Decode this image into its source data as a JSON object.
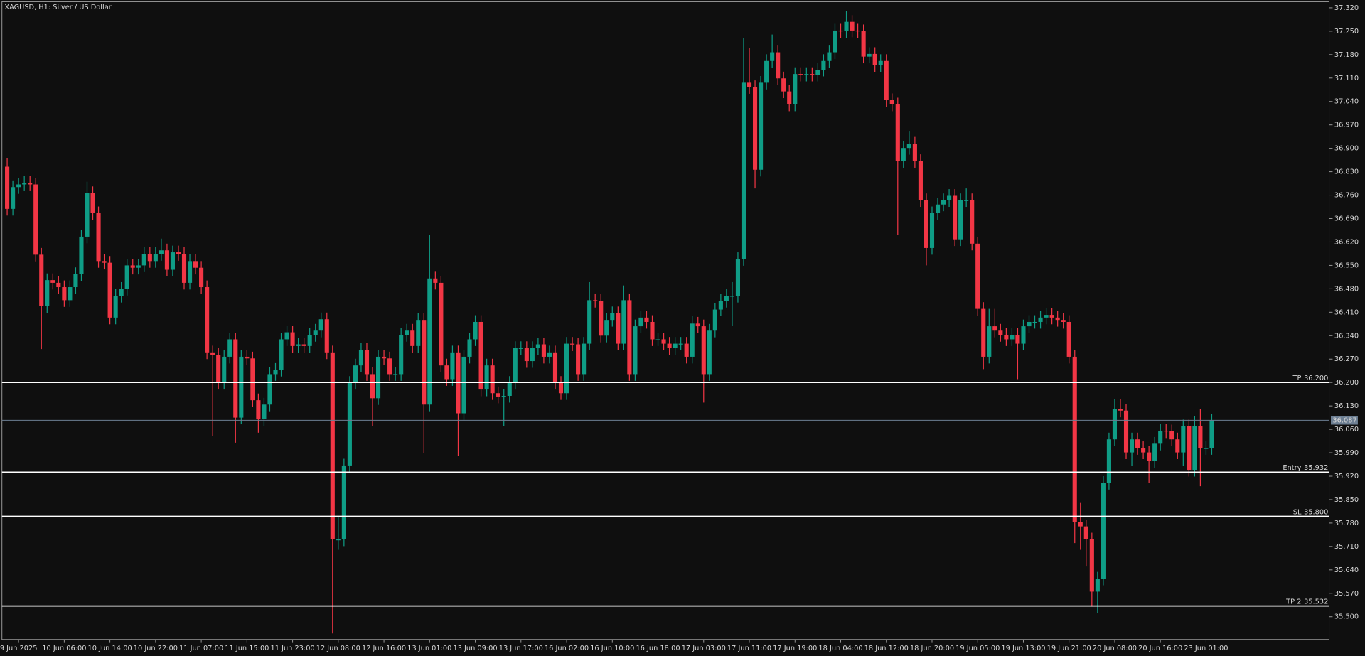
{
  "chart_data": {
    "type": "candlestick",
    "title": "XAGUSD, H1:  Silver / US Dollar",
    "up_color": "#0f9d86",
    "down_color": "#f23645",
    "categories": [
      null,
      null,
      "9 Jun 2025",
      null,
      null,
      null,
      null,
      null,
      null,
      null,
      "10 Jun 06:00",
      null,
      null,
      null,
      null,
      null,
      null,
      null,
      "10 Jun 14:00",
      null,
      null,
      null,
      null,
      null,
      null,
      null,
      "10 Jun 22:00",
      null,
      null,
      null,
      null,
      null,
      null,
      null,
      "11 Jun 07:00",
      null,
      null,
      null,
      null,
      null,
      null,
      null,
      "11 Jun 15:00",
      null,
      null,
      null,
      null,
      null,
      null,
      null,
      "11 Jun 23:00",
      null,
      null,
      null,
      null,
      null,
      null,
      null,
      "12 Jun 08:00",
      null,
      null,
      null,
      null,
      null,
      null,
      null,
      "12 Jun 16:00",
      null,
      null,
      null,
      null,
      null,
      null,
      null,
      "13 Jun 01:00",
      null,
      null,
      null,
      null,
      null,
      null,
      null,
      "13 Jun 09:00",
      null,
      null,
      null,
      null,
      null,
      null,
      null,
      "13 Jun 17:00",
      null,
      null,
      null,
      null,
      null,
      null,
      null,
      "16 Jun 02:00",
      null,
      null,
      null,
      null,
      null,
      null,
      null,
      "16 Jun 10:00",
      null,
      null,
      null,
      null,
      null,
      null,
      null,
      "16 Jun 18:00",
      null,
      null,
      null,
      null,
      null,
      null,
      null,
      "17 Jun 03:00",
      null,
      null,
      null,
      null,
      null,
      null,
      null,
      "17 Jun 11:00",
      null,
      null,
      null,
      null,
      null,
      null,
      null,
      "17 Jun 19:00",
      null,
      null,
      null,
      null,
      null,
      null,
      null,
      "18 Jun 04:00",
      null,
      null,
      null,
      null,
      null,
      null,
      null,
      "18 Jun 12:00",
      null,
      null,
      null,
      null,
      null,
      null,
      null,
      "18 Jun 20:00",
      null,
      null,
      null,
      null,
      null,
      null,
      null,
      "19 Jun 05:00",
      null,
      null,
      null,
      null,
      null,
      null,
      null,
      "19 Jun 13:00",
      null,
      null,
      null,
      null,
      null,
      null,
      null,
      "19 Jun 21:00",
      null,
      null,
      null,
      null,
      null,
      null,
      null,
      "20 Jun 08:00",
      null,
      null,
      null,
      null,
      null,
      null,
      null,
      "20 Jun 16:00",
      null,
      null,
      null,
      null,
      null,
      null,
      null,
      "23 Jun 01:00",
      null
    ],
    "open": [
      36.845,
      36.719,
      36.784,
      36.792,
      36.797,
      36.792,
      36.582,
      36.428,
      36.506,
      36.498,
      36.485,
      36.446,
      36.485,
      36.524,
      36.636,
      36.766,
      36.706,
      36.563,
      36.558,
      36.394,
      36.459,
      36.48,
      36.55,
      36.543,
      36.55,
      36.584,
      36.563,
      36.584,
      36.595,
      36.537,
      36.589,
      36.584,
      36.498,
      36.563,
      36.543,
      36.485,
      36.29,
      36.283,
      36.199,
      36.277,
      36.329,
      36.095,
      36.277,
      36.272,
      36.147,
      36.09,
      36.134,
      36.225,
      36.238,
      36.329,
      36.35,
      36.309,
      36.314,
      36.309,
      36.342,
      36.355,
      36.389,
      36.29,
      35.731,
      35.731,
      35.952,
      36.199,
      36.251,
      36.298,
      36.225,
      36.153,
      36.277,
      36.272,
      36.225,
      36.225,
      36.342,
      36.355,
      36.309,
      36.387,
      36.134,
      36.511,
      36.498,
      36.251,
      36.21,
      36.29,
      36.108,
      36.277,
      36.329,
      36.381,
      36.179,
      36.251,
      36.168,
      36.158,
      36.16,
      36.199,
      36.303,
      36.303,
      36.264,
      36.303,
      36.314,
      36.277,
      36.29,
      36.199,
      36.168,
      36.316,
      36.314,
      36.225,
      36.316,
      36.446,
      36.444,
      36.34,
      36.387,
      36.407,
      36.316,
      36.446,
      36.225,
      36.368,
      36.394,
      36.381,
      36.329,
      36.329,
      36.316,
      36.303,
      36.316,
      36.316,
      36.277,
      36.376,
      36.368,
      36.225,
      36.355,
      36.418,
      36.444,
      36.459,
      36.459,
      36.569,
      37.096,
      37.083,
      36.836,
      37.096,
      37.161,
      37.187,
      37.109,
      37.07,
      37.031,
      37.122,
      37.12,
      37.122,
      37.12,
      37.135,
      37.161,
      37.187,
      37.252,
      37.25,
      37.278,
      37.252,
      37.25,
      37.174,
      37.182,
      37.148,
      37.161,
      37.044,
      37.031,
      36.862,
      36.901,
      36.914,
      36.862,
      36.745,
      36.602,
      36.706,
      36.732,
      36.745,
      36.758,
      36.628,
      36.745,
      36.745,
      36.615,
      36.42,
      36.277,
      36.368,
      36.355,
      36.342,
      36.329,
      36.342,
      36.316,
      36.368,
      36.381,
      36.381,
      36.394,
      36.402,
      36.394,
      36.387,
      36.381,
      36.277,
      35.783,
      35.77,
      35.731,
      35.575,
      35.614,
      35.9,
      36.03,
      36.121,
      36.116,
      35.991,
      36.03,
      36.004,
      35.991,
      35.965,
      36.017,
      36.056,
      36.054,
      36.03,
      35.991,
      36.069,
      35.939,
      36.069,
      36.004,
      36.004
    ],
    "high": [
      36.87,
      36.804,
      36.812,
      36.817,
      36.817,
      36.812,
      36.602,
      36.526,
      36.526,
      36.518,
      36.505,
      36.505,
      36.544,
      36.656,
      36.8,
      36.786,
      36.726,
      36.583,
      36.578,
      36.479,
      36.5,
      36.57,
      36.57,
      36.57,
      36.604,
      36.604,
      36.604,
      36.63,
      36.615,
      36.609,
      36.609,
      36.604,
      36.583,
      36.583,
      36.563,
      36.505,
      36.31,
      36.303,
      36.297,
      36.349,
      36.349,
      36.297,
      36.297,
      36.292,
      36.167,
      36.154,
      36.245,
      36.258,
      36.349,
      36.37,
      36.37,
      36.334,
      36.334,
      36.362,
      36.375,
      36.409,
      36.409,
      36.31,
      35.8,
      35.972,
      36.219,
      36.271,
      36.318,
      36.318,
      36.245,
      36.297,
      36.297,
      36.292,
      36.245,
      36.362,
      36.375,
      36.375,
      36.407,
      36.407,
      36.64,
      36.531,
      36.518,
      36.271,
      36.31,
      36.31,
      36.297,
      36.349,
      36.401,
      36.401,
      36.271,
      36.271,
      36.188,
      36.18,
      36.219,
      36.323,
      36.323,
      36.323,
      36.323,
      36.334,
      36.334,
      36.31,
      36.31,
      36.219,
      36.336,
      36.336,
      36.334,
      36.336,
      36.5,
      36.466,
      36.464,
      36.407,
      36.427,
      36.427,
      36.49,
      36.466,
      36.388,
      36.414,
      36.414,
      36.401,
      36.349,
      36.349,
      36.336,
      36.336,
      36.336,
      36.336,
      36.4,
      36.396,
      36.388,
      36.375,
      36.438,
      36.464,
      36.479,
      36.5,
      36.589,
      37.23,
      37.2,
      37.103,
      37.116,
      37.181,
      37.24,
      37.207,
      37.129,
      37.09,
      37.142,
      37.142,
      37.142,
      37.142,
      37.155,
      37.181,
      37.207,
      37.272,
      37.272,
      37.31,
      37.298,
      37.272,
      37.27,
      37.202,
      37.202,
      37.181,
      37.181,
      37.064,
      37.051,
      36.921,
      36.95,
      36.934,
      36.882,
      36.765,
      36.726,
      36.752,
      36.765,
      36.778,
      36.778,
      36.765,
      36.78,
      36.765,
      36.635,
      36.44,
      36.42,
      36.42,
      36.375,
      36.362,
      36.362,
      36.362,
      36.388,
      36.401,
      36.401,
      36.414,
      36.422,
      36.422,
      36.414,
      36.407,
      36.401,
      36.297,
      35.84,
      35.79,
      35.751,
      35.634,
      35.92,
      36.05,
      36.15,
      36.15,
      36.136,
      36.05,
      36.05,
      36.024,
      36.011,
      36.037,
      36.076,
      36.076,
      36.074,
      36.05,
      36.089,
      36.089,
      36.1,
      36.12,
      36.024,
      36.107
    ],
    "low": [
      36.699,
      36.699,
      36.764,
      36.772,
      36.772,
      36.562,
      36.3,
      36.408,
      36.478,
      36.465,
      36.426,
      36.426,
      36.465,
      36.504,
      36.616,
      36.686,
      36.543,
      36.538,
      36.374,
      36.374,
      36.439,
      36.46,
      36.523,
      36.523,
      36.53,
      36.543,
      36.543,
      36.564,
      36.517,
      36.517,
      36.564,
      36.478,
      36.478,
      36.523,
      36.465,
      36.27,
      36.04,
      36.179,
      36.179,
      36.257,
      36.02,
      36.075,
      36.252,
      36.127,
      36.05,
      36.07,
      36.114,
      36.205,
      36.218,
      36.309,
      36.289,
      36.289,
      36.289,
      36.289,
      36.322,
      36.335,
      36.27,
      35.45,
      35.7,
      35.711,
      35.932,
      36.179,
      36.231,
      36.205,
      36.07,
      36.133,
      36.252,
      36.205,
      36.205,
      36.205,
      36.322,
      36.289,
      36.289,
      35.99,
      36.114,
      36.478,
      36.231,
      36.19,
      36.19,
      35.98,
      36.088,
      36.257,
      36.309,
      36.159,
      36.159,
      36.148,
      36.138,
      36.07,
      36.14,
      36.179,
      36.283,
      36.244,
      36.244,
      36.283,
      36.257,
      36.257,
      36.179,
      36.148,
      36.148,
      36.294,
      36.205,
      36.205,
      36.296,
      36.424,
      36.32,
      36.32,
      36.367,
      36.296,
      36.296,
      36.205,
      36.205,
      36.348,
      36.361,
      36.309,
      36.309,
      36.296,
      36.283,
      36.283,
      36.296,
      36.257,
      36.257,
      36.348,
      36.14,
      36.205,
      36.335,
      36.398,
      36.424,
      36.37,
      36.439,
      36.549,
      37.063,
      36.78,
      36.816,
      37.076,
      37.141,
      37.089,
      37.05,
      37.011,
      37.011,
      37.1,
      37.1,
      37.1,
      37.1,
      37.115,
      37.141,
      37.167,
      37.23,
      37.23,
      37.232,
      37.23,
      37.154,
      37.154,
      37.128,
      37.128,
      37.024,
      37.011,
      36.64,
      36.842,
      36.881,
      36.842,
      36.725,
      36.55,
      36.582,
      36.686,
      36.712,
      36.725,
      36.608,
      36.608,
      36.725,
      36.595,
      36.4,
      36.24,
      36.257,
      36.335,
      36.322,
      36.309,
      36.309,
      36.21,
      36.296,
      36.348,
      36.361,
      36.361,
      36.374,
      36.374,
      36.367,
      36.361,
      36.257,
      35.72,
      35.7,
      35.65,
      35.53,
      35.51,
      35.594,
      35.88,
      36.01,
      36.096,
      35.971,
      35.95,
      35.984,
      35.971,
      35.9,
      35.945,
      35.997,
      36.034,
      36.01,
      35.971,
      35.95,
      35.919,
      35.919,
      35.89,
      35.984,
      35.984
    ],
    "close": [
      36.719,
      36.784,
      36.792,
      36.797,
      36.792,
      36.582,
      36.428,
      36.506,
      36.498,
      36.485,
      36.446,
      36.485,
      36.524,
      36.636,
      36.766,
      36.706,
      36.563,
      36.558,
      36.394,
      36.459,
      36.48,
      36.55,
      36.543,
      36.55,
      36.584,
      36.563,
      36.584,
      36.595,
      36.537,
      36.589,
      36.584,
      36.498,
      36.563,
      36.543,
      36.485,
      36.29,
      36.283,
      36.199,
      36.277,
      36.329,
      36.095,
      36.277,
      36.272,
      36.147,
      36.09,
      36.134,
      36.225,
      36.238,
      36.329,
      36.35,
      36.309,
      36.314,
      36.309,
      36.342,
      36.355,
      36.389,
      36.29,
      35.731,
      35.731,
      35.952,
      36.199,
      36.251,
      36.298,
      36.225,
      36.153,
      36.277,
      36.272,
      36.225,
      36.225,
      36.342,
      36.355,
      36.309,
      36.387,
      36.134,
      36.511,
      36.498,
      36.251,
      36.21,
      36.29,
      36.108,
      36.277,
      36.329,
      36.381,
      36.179,
      36.251,
      36.168,
      36.158,
      36.16,
      36.199,
      36.303,
      36.303,
      36.264,
      36.303,
      36.314,
      36.277,
      36.29,
      36.199,
      36.168,
      36.316,
      36.314,
      36.225,
      36.316,
      36.446,
      36.444,
      36.34,
      36.387,
      36.407,
      36.316,
      36.446,
      36.225,
      36.368,
      36.394,
      36.381,
      36.329,
      36.329,
      36.316,
      36.303,
      36.316,
      36.316,
      36.277,
      36.376,
      36.368,
      36.225,
      36.355,
      36.418,
      36.444,
      36.459,
      36.459,
      36.569,
      37.096,
      37.083,
      36.836,
      37.096,
      37.161,
      37.187,
      37.109,
      37.07,
      37.031,
      37.122,
      37.12,
      37.122,
      37.12,
      37.135,
      37.161,
      37.187,
      37.252,
      37.25,
      37.278,
      37.252,
      37.25,
      37.174,
      37.182,
      37.148,
      37.161,
      37.044,
      37.031,
      36.862,
      36.901,
      36.914,
      36.862,
      36.745,
      36.602,
      36.706,
      36.732,
      36.745,
      36.758,
      36.628,
      36.745,
      36.745,
      36.615,
      36.42,
      36.277,
      36.368,
      36.355,
      36.342,
      36.329,
      36.342,
      36.316,
      36.368,
      36.381,
      36.381,
      36.394,
      36.402,
      36.394,
      36.387,
      36.381,
      36.277,
      35.783,
      35.77,
      35.731,
      35.575,
      35.614,
      35.9,
      36.03,
      36.121,
      36.116,
      35.991,
      36.03,
      36.004,
      35.991,
      35.965,
      36.017,
      36.056,
      36.054,
      36.03,
      35.991,
      36.069,
      35.939,
      36.069,
      36.004,
      36.004,
      36.087
    ],
    "ylim": [
      35.432,
      37.338
    ],
    "yticks": [
      {
        "value": 37.32,
        "label": "37.320"
      },
      {
        "value": 37.25,
        "label": "37.250"
      },
      {
        "value": 37.18,
        "label": "37.180"
      },
      {
        "value": 37.11,
        "label": "37.110"
      },
      {
        "value": 37.04,
        "label": "37.040"
      },
      {
        "value": 36.97,
        "label": "36.970"
      },
      {
        "value": 36.9,
        "label": "36.900"
      },
      {
        "value": 36.83,
        "label": "36.830"
      },
      {
        "value": 36.76,
        "label": "36.760"
      },
      {
        "value": 36.69,
        "label": "36.690"
      },
      {
        "value": 36.62,
        "label": "36.620"
      },
      {
        "value": 36.55,
        "label": "36.550"
      },
      {
        "value": 36.48,
        "label": "36.480"
      },
      {
        "value": 36.41,
        "label": "36.410"
      },
      {
        "value": 36.34,
        "label": "36.340"
      },
      {
        "value": 36.27,
        "label": "36.270"
      },
      {
        "value": 36.2,
        "label": "36.200"
      },
      {
        "value": 36.13,
        "label": "36.130"
      },
      {
        "value": 36.06,
        "label": "36.060"
      },
      {
        "value": 35.99,
        "label": "35.990"
      },
      {
        "value": 35.92,
        "label": "35.920"
      },
      {
        "value": 35.85,
        "label": "35.850"
      },
      {
        "value": 35.78,
        "label": "35.780"
      },
      {
        "value": 35.71,
        "label": "35.710"
      },
      {
        "value": 35.64,
        "label": "35.640"
      },
      {
        "value": 35.57,
        "label": "35.570"
      },
      {
        "value": 35.5,
        "label": "35.500"
      }
    ],
    "levels": [
      {
        "name": "TP",
        "value": 36.2,
        "value_label": "36.200",
        "color": "#ffffff"
      },
      {
        "name": "Entry",
        "value": 35.932,
        "value_label": "35.932",
        "color": "#ffffff"
      },
      {
        "name": "SL",
        "value": 35.8,
        "value_label": "35.800",
        "color": "#ffffff"
      },
      {
        "name": "TP 2",
        "value": 35.532,
        "value_label": "35.532",
        "color": "#ffffff"
      }
    ],
    "current": {
      "value": 36.087,
      "color": "#6d7f93"
    }
  }
}
